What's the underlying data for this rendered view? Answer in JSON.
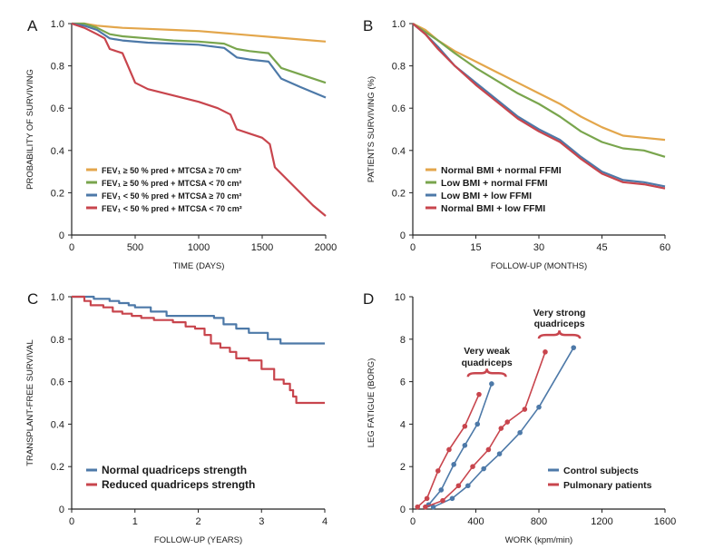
{
  "chart_data": [
    {
      "panel": "A",
      "type": "line",
      "xlabel": "TIME (DAYS)",
      "ylabel": "PROBABILITY OF SURVIVING",
      "xlim": [
        0,
        2000
      ],
      "ylim": [
        0,
        1.0
      ],
      "xticks": [
        0,
        500,
        1000,
        1500,
        2000
      ],
      "yticks": [
        0,
        0.2,
        0.4,
        0.6,
        0.8,
        1.0
      ],
      "ytick_labels": [
        "0",
        "0.2",
        "0.4",
        "0.6",
        "0.8",
        "1.0"
      ],
      "legend_position": "bottom-left",
      "series": [
        {
          "name": "FEV₁ ≥ 50 % pred + MTCSA ≥ 70 cm²",
          "color": "#e3a64b",
          "x": [
            0,
            100,
            200,
            400,
            600,
            800,
            1000,
            1200,
            1400,
            1600,
            1800,
            2000
          ],
          "y": [
            1.0,
            1.0,
            0.99,
            0.98,
            0.975,
            0.97,
            0.965,
            0.955,
            0.945,
            0.935,
            0.925,
            0.915
          ]
        },
        {
          "name": "FEV₁ ≥ 50 % pred + MTCSA < 70 cm²",
          "color": "#79a54d",
          "x": [
            0,
            100,
            200,
            300,
            400,
            600,
            800,
            1000,
            1200,
            1300,
            1400,
            1550,
            1650,
            1800,
            2000
          ],
          "y": [
            1.0,
            1.0,
            0.98,
            0.95,
            0.94,
            0.93,
            0.92,
            0.915,
            0.905,
            0.88,
            0.87,
            0.86,
            0.79,
            0.76,
            0.72
          ]
        },
        {
          "name": "FEV₁ < 50 % pred + MTCSA ≥ 70 cm²",
          "color": "#4d79a8",
          "x": [
            0,
            100,
            200,
            300,
            400,
            600,
            800,
            1000,
            1200,
            1300,
            1400,
            1550,
            1650,
            1800,
            2000
          ],
          "y": [
            1.0,
            0.99,
            0.97,
            0.93,
            0.92,
            0.91,
            0.905,
            0.9,
            0.885,
            0.84,
            0.83,
            0.82,
            0.74,
            0.7,
            0.65
          ]
        },
        {
          "name": "FEV₁ < 50 % pred + MTCSA < 70 cm²",
          "color": "#c8454d",
          "x": [
            0,
            100,
            200,
            260,
            300,
            400,
            500,
            600,
            800,
            1000,
            1150,
            1250,
            1300,
            1400,
            1500,
            1560,
            1600,
            1700,
            1800,
            1900,
            2000
          ],
          "y": [
            1.0,
            0.98,
            0.95,
            0.93,
            0.88,
            0.86,
            0.72,
            0.69,
            0.66,
            0.63,
            0.6,
            0.57,
            0.5,
            0.48,
            0.46,
            0.43,
            0.32,
            0.26,
            0.2,
            0.14,
            0.09
          ]
        }
      ]
    },
    {
      "panel": "B",
      "type": "line",
      "xlabel": "FOLLOW-UP (MONTHS)",
      "ylabel": "PATIENTS SURVIVING (%)",
      "xlim": [
        0,
        60
      ],
      "ylim": [
        0,
        1.0
      ],
      "xticks": [
        0,
        15,
        30,
        45,
        60
      ],
      "yticks": [
        0,
        0.2,
        0.4,
        0.6,
        0.8,
        1.0
      ],
      "ytick_labels": [
        "0",
        "0.2",
        "0.4",
        "0.6",
        "0.8",
        "1.0"
      ],
      "legend_position": "bottom-left",
      "series": [
        {
          "name": "Normal BMI + normal FFMI",
          "color": "#e3a64b",
          "x": [
            0,
            3,
            6,
            10,
            15,
            20,
            25,
            30,
            35,
            40,
            45,
            50,
            55,
            60
          ],
          "y": [
            1.0,
            0.97,
            0.92,
            0.87,
            0.82,
            0.77,
            0.72,
            0.67,
            0.62,
            0.56,
            0.51,
            0.47,
            0.46,
            0.45
          ]
        },
        {
          "name": "Low BMI + normal FFMI",
          "color": "#79a54d",
          "x": [
            0,
            3,
            6,
            10,
            15,
            20,
            25,
            30,
            35,
            40,
            45,
            50,
            55,
            60
          ],
          "y": [
            1.0,
            0.96,
            0.92,
            0.86,
            0.79,
            0.73,
            0.67,
            0.62,
            0.56,
            0.49,
            0.44,
            0.41,
            0.4,
            0.37
          ]
        },
        {
          "name": "Low BMI + low FFMI",
          "color": "#4d79a8",
          "x": [
            0,
            3,
            6,
            10,
            15,
            20,
            25,
            30,
            35,
            40,
            45,
            50,
            55,
            60
          ],
          "y": [
            1.0,
            0.95,
            0.89,
            0.8,
            0.72,
            0.64,
            0.56,
            0.5,
            0.45,
            0.37,
            0.3,
            0.26,
            0.25,
            0.23
          ]
        },
        {
          "name": "Normal BMI + low FFMI",
          "color": "#c8454d",
          "x": [
            0,
            3,
            6,
            10,
            15,
            20,
            25,
            30,
            35,
            40,
            45,
            50,
            55,
            60
          ],
          "y": [
            1.0,
            0.95,
            0.88,
            0.8,
            0.71,
            0.63,
            0.55,
            0.49,
            0.44,
            0.36,
            0.29,
            0.25,
            0.24,
            0.22
          ]
        }
      ]
    },
    {
      "panel": "C",
      "type": "line",
      "xlabel": "FOLLOW-UP (YEARS)",
      "ylabel": "TRANSPLANT-FREE SURVIVAL",
      "xlim": [
        0,
        4
      ],
      "ylim": [
        0,
        1.0
      ],
      "xticks": [
        0,
        1,
        2,
        3,
        4
      ],
      "yticks": [
        0,
        0.2,
        0.4,
        0.6,
        0.8,
        1.0
      ],
      "ytick_labels": [
        "0",
        "0.2",
        "0.4",
        "0.6",
        "0.8",
        "1.0"
      ],
      "legend_position": "bottom-left",
      "series": [
        {
          "name": "Normal quadriceps strength",
          "color": "#4d79a8",
          "x": [
            0,
            0.25,
            0.35,
            0.5,
            0.6,
            0.75,
            0.9,
            1.0,
            1.25,
            1.5,
            2.0,
            2.25,
            2.4,
            2.6,
            2.8,
            3.0,
            3.1,
            3.3,
            3.5,
            4.0
          ],
          "y": [
            1.0,
            1.0,
            0.99,
            0.99,
            0.98,
            0.97,
            0.96,
            0.95,
            0.93,
            0.91,
            0.91,
            0.9,
            0.87,
            0.85,
            0.83,
            0.83,
            0.8,
            0.78,
            0.78,
            0.78
          ]
        },
        {
          "name": "Reduced quadriceps strength",
          "color": "#c8454d",
          "x": [
            0,
            0.2,
            0.3,
            0.5,
            0.65,
            0.8,
            0.95,
            1.1,
            1.3,
            1.6,
            1.8,
            1.95,
            2.1,
            2.2,
            2.35,
            2.5,
            2.6,
            2.8,
            3.0,
            3.2,
            3.35,
            3.45,
            3.5,
            3.55,
            4.0
          ],
          "y": [
            1.0,
            0.98,
            0.96,
            0.95,
            0.93,
            0.92,
            0.91,
            0.9,
            0.89,
            0.88,
            0.86,
            0.85,
            0.82,
            0.78,
            0.76,
            0.74,
            0.71,
            0.7,
            0.66,
            0.61,
            0.59,
            0.56,
            0.53,
            0.5,
            0.5
          ]
        }
      ]
    },
    {
      "panel": "D",
      "type": "line",
      "xlabel": "WORK (kpm/min)",
      "ylabel": "LEG FATIGUE (BORG)",
      "xlim": [
        0,
        1600
      ],
      "ylim": [
        0,
        10
      ],
      "xticks": [
        0,
        400,
        800,
        1200,
        1600
      ],
      "yticks": [
        0,
        2,
        4,
        6,
        8,
        10
      ],
      "ytick_labels": [
        "0",
        "2",
        "4",
        "6",
        "8",
        "10"
      ],
      "legend_position": "bottom-right",
      "annotations": [
        {
          "text_lines": [
            "Very weak",
            "quadriceps"
          ],
          "bracket_x": [
            350,
            590
          ],
          "bracket_y": 6.4,
          "text_x": 470,
          "text_y": [
            7.3,
            6.75
          ]
        },
        {
          "text_lines": [
            "Very strong",
            "quadriceps"
          ],
          "bracket_x": [
            800,
            1060
          ],
          "bracket_y": 8.2,
          "text_x": 930,
          "text_y": [
            9.1,
            8.6
          ]
        }
      ],
      "series": [
        {
          "name": "Control subjects",
          "color": "#4d79a8",
          "group": "Very weak quadriceps",
          "x": [
            100,
            180,
            260,
            330,
            410,
            500
          ],
          "y": [
            0.2,
            0.9,
            2.1,
            3.0,
            4.0,
            5.9
          ]
        },
        {
          "name": "Pulmonary patients",
          "color": "#c8454d",
          "group": "Very weak quadriceps",
          "x": [
            30,
            90,
            160,
            230,
            330,
            420
          ],
          "y": [
            0.1,
            0.5,
            1.8,
            2.8,
            3.9,
            5.4
          ]
        },
        {
          "name": "Control subjects",
          "color": "#4d79a8",
          "group": "Very strong quadriceps",
          "x": [
            130,
            250,
            350,
            450,
            550,
            680,
            800,
            1020
          ],
          "y": [
            0.1,
            0.5,
            1.1,
            1.9,
            2.6,
            3.6,
            4.8,
            7.6
          ]
        },
        {
          "name": "Pulmonary patients",
          "color": "#c8454d",
          "group": "Very strong quadriceps",
          "x": [
            80,
            190,
            290,
            380,
            480,
            560,
            600,
            710,
            840
          ],
          "y": [
            0.1,
            0.4,
            1.1,
            2.0,
            2.8,
            3.8,
            4.1,
            4.7,
            7.4
          ]
        }
      ],
      "legend": [
        {
          "name": "Control subjects",
          "color": "#4d79a8"
        },
        {
          "name": "Pulmonary patients",
          "color": "#c8454d"
        }
      ]
    }
  ]
}
